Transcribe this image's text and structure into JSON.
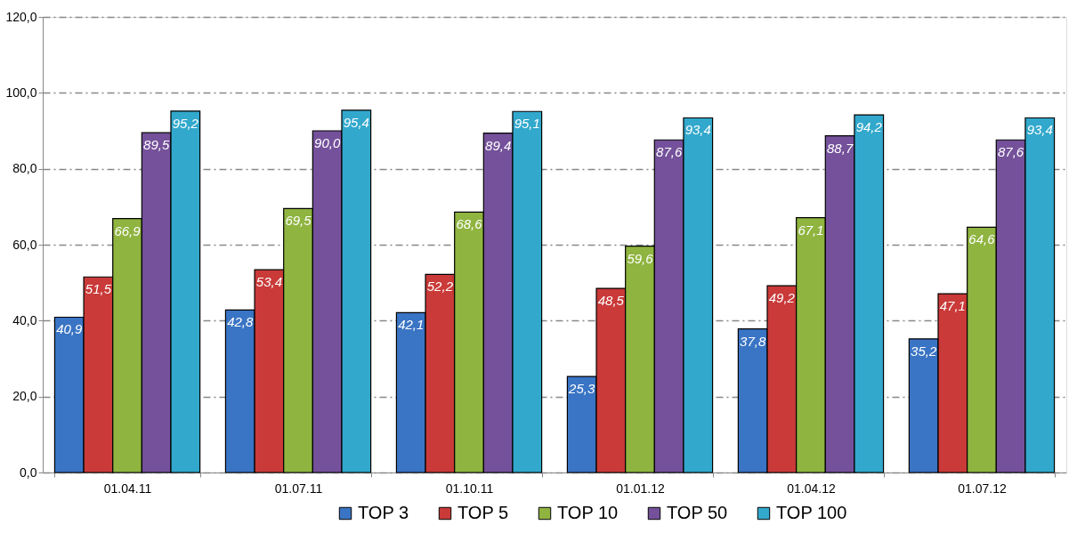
{
  "chart_data": {
    "type": "bar",
    "categories": [
      "01.04.11",
      "01.07.11",
      "01.10.11",
      "01.01.12",
      "01.04.12",
      "01.07.12"
    ],
    "series": [
      {
        "name": "TOP 3",
        "color": "#3a74c4",
        "values": [
          40.9,
          42.8,
          42.1,
          25.3,
          37.8,
          35.2
        ],
        "value_labels": [
          "40,9",
          "42,8",
          "42,1",
          "25,3",
          "37,8",
          "35,2"
        ]
      },
      {
        "name": "TOP 5",
        "color": "#c93a38",
        "values": [
          51.5,
          53.4,
          52.2,
          48.5,
          49.2,
          47.1
        ],
        "value_labels": [
          "51,5",
          "53,4",
          "52,2",
          "48,5",
          "49,2",
          "47,1"
        ]
      },
      {
        "name": "TOP 10",
        "color": "#8fb440",
        "values": [
          66.9,
          69.5,
          68.6,
          59.6,
          67.1,
          64.6
        ],
        "value_labels": [
          "66,9",
          "69,5",
          "68,6",
          "59,6",
          "67,1",
          "64,6"
        ]
      },
      {
        "name": "TOP 50",
        "color": "#74519a",
        "values": [
          89.5,
          90.0,
          89.4,
          87.6,
          88.7,
          87.6
        ],
        "value_labels": [
          "89,5",
          "90,0",
          "89,4",
          "87,6",
          "88,7",
          "87,6"
        ]
      },
      {
        "name": "TOP 100",
        "color": "#32a8cc",
        "values": [
          95.2,
          95.4,
          95.1,
          93.4,
          94.2,
          93.4
        ],
        "value_labels": [
          "95,2",
          "95,4",
          "95,1",
          "93,4",
          "94,2",
          "93,4"
        ]
      }
    ],
    "ylim": [
      0,
      120
    ],
    "yticks": [
      {
        "value": 0,
        "label": "0,0"
      },
      {
        "value": 20,
        "label": "20,0"
      },
      {
        "value": 40,
        "label": "40,0"
      },
      {
        "value": 60,
        "label": "60,0"
      },
      {
        "value": 80,
        "label": "80,0"
      },
      {
        "value": 100,
        "label": "100,0"
      },
      {
        "value": 120,
        "label": "120,0"
      }
    ],
    "grid": "y",
    "legend": "bottom"
  }
}
